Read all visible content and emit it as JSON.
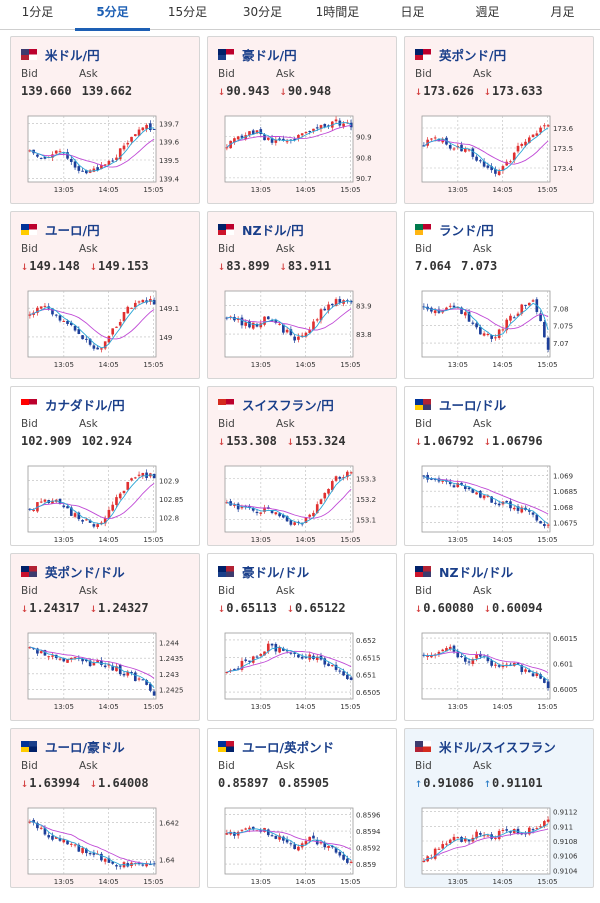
{
  "tabs": [
    {
      "label": "1分足",
      "active": false
    },
    {
      "label": "5分足",
      "active": true
    },
    {
      "label": "15分足",
      "active": false
    },
    {
      "label": "30分足",
      "active": false
    },
    {
      "label": "1時間足",
      "active": false
    },
    {
      "label": "日足",
      "active": false
    },
    {
      "label": "週足",
      "active": false
    },
    {
      "label": "月足",
      "active": false
    }
  ],
  "labels": {
    "bid": "Bid",
    "ask": "Ask"
  },
  "colors": {
    "down_bg": "#fdf1f1",
    "up_bg": "#eef5fb",
    "candle_up": "#e03030",
    "candle_down": "#1d3f9a",
    "ma_short": "#2aa6d6",
    "ma_long": "#c04ad6",
    "arrow_down": "#d23b3b",
    "arrow_up": "#2a7cc7"
  },
  "cards": [
    {
      "pair": "米ドル/円",
      "flag": [
        "us",
        "jp"
      ],
      "bid": "139.660",
      "ask": "139.662",
      "bid_dir": "",
      "ask_dir": "",
      "trend": "down",
      "chart": {
        "x_ticks": [
          "13:05",
          "14:05",
          "15:05"
        ],
        "y_ticks": [
          "139.7",
          "139.6",
          "139.5",
          "139.4"
        ],
        "y_range": [
          139.38,
          139.74
        ],
        "anchors": [
          139.55,
          139.52,
          139.56,
          139.48,
          139.43,
          139.46,
          139.5,
          139.6,
          139.69,
          139.66
        ]
      }
    },
    {
      "pair": "豪ドル/円",
      "flag": [
        "au",
        "jp"
      ],
      "bid": "90.943",
      "ask": "90.948",
      "bid_dir": "down",
      "ask_dir": "down",
      "trend": "down",
      "chart": {
        "x_ticks": [
          "13:05",
          "14:05",
          "15:05"
        ],
        "y_ticks": [
          "90.9",
          "90.8",
          "90.7"
        ],
        "y_range": [
          90.68,
          91.0
        ],
        "anchors": [
          90.86,
          90.9,
          90.93,
          90.88,
          90.87,
          90.9,
          90.92,
          90.96,
          90.97,
          90.95
        ]
      }
    },
    {
      "pair": "英ポンド/円",
      "flag": [
        "gb",
        "jp"
      ],
      "bid": "173.626",
      "ask": "173.633",
      "bid_dir": "down",
      "ask_dir": "down",
      "trend": "down",
      "chart": {
        "x_ticks": [
          "13:05",
          "14:05",
          "15:05"
        ],
        "y_ticks": [
          "173.6",
          "173.5",
          "173.4"
        ],
        "y_range": [
          173.33,
          173.66
        ],
        "anchors": [
          173.52,
          173.55,
          173.5,
          173.49,
          173.44,
          173.38,
          173.42,
          173.52,
          173.58,
          173.62
        ]
      }
    },
    {
      "pair": "ユーロ/円",
      "flag": [
        "eu",
        "jp"
      ],
      "bid": "149.148",
      "ask": "149.153",
      "bid_dir": "down",
      "ask_dir": "down",
      "trend": "down",
      "chart": {
        "x_ticks": [
          "13:05",
          "14:05",
          "15:05"
        ],
        "y_ticks": [
          "149.1",
          "149"
        ],
        "y_range": [
          148.93,
          149.16
        ],
        "anchors": [
          149.08,
          149.11,
          149.07,
          149.04,
          148.99,
          148.95,
          149.02,
          149.09,
          149.13,
          149.12
        ]
      }
    },
    {
      "pair": "NZドル/円",
      "flag": [
        "nz",
        "jp"
      ],
      "bid": "83.899",
      "ask": "83.911",
      "bid_dir": "down",
      "ask_dir": "down",
      "trend": "down",
      "chart": {
        "x_ticks": [
          "13:05",
          "14:05",
          "15:05"
        ],
        "y_ticks": [
          "83.9",
          "83.8"
        ],
        "y_range": [
          83.72,
          83.95
        ],
        "anchors": [
          83.86,
          83.84,
          83.83,
          83.86,
          83.82,
          83.78,
          83.82,
          83.89,
          83.92,
          83.9
        ]
      }
    },
    {
      "pair": "ランド/円",
      "flag": [
        "za",
        "jp"
      ],
      "bid": "7.064",
      "ask": "7.073",
      "bid_dir": "",
      "ask_dir": "",
      "trend": "flat",
      "chart": {
        "x_ticks": [
          "13:05",
          "14:05",
          "15:05"
        ],
        "y_ticks": [
          "7.08",
          "7.075",
          "7.07"
        ],
        "y_range": [
          7.066,
          7.085
        ],
        "anchors": [
          7.08,
          7.079,
          7.081,
          7.078,
          7.073,
          7.071,
          7.076,
          7.08,
          7.082,
          7.068
        ]
      }
    },
    {
      "pair": "カナダドル/円",
      "flag": [
        "ca",
        "jp"
      ],
      "bid": "102.909",
      "ask": "102.924",
      "bid_dir": "",
      "ask_dir": "",
      "trend": "flat",
      "chart": {
        "x_ticks": [
          "13:05",
          "14:05",
          "15:05"
        ],
        "y_ticks": [
          "102.9",
          "102.85",
          "102.8"
        ],
        "y_range": [
          102.76,
          102.94
        ],
        "anchors": [
          102.82,
          102.85,
          102.84,
          102.81,
          102.79,
          102.78,
          102.83,
          102.89,
          102.92,
          102.91
        ]
      }
    },
    {
      "pair": "スイスフラン/円",
      "flag": [
        "ch",
        "jp"
      ],
      "bid": "153.308",
      "ask": "153.324",
      "bid_dir": "down",
      "ask_dir": "down",
      "trend": "down",
      "chart": {
        "x_ticks": [
          "13:05",
          "14:05",
          "15:05"
        ],
        "y_ticks": [
          "153.3",
          "153.2",
          "153.1"
        ],
        "y_range": [
          153.04,
          153.36
        ],
        "anchors": [
          153.17,
          153.16,
          153.14,
          153.16,
          153.11,
          153.07,
          153.11,
          153.21,
          153.31,
          153.32
        ]
      }
    },
    {
      "pair": "ユーロ/ドル",
      "flag": [
        "eu",
        "us"
      ],
      "bid": "1.06792",
      "ask": "1.06796",
      "bid_dir": "down",
      "ask_dir": "down",
      "trend": "flat",
      "chart": {
        "x_ticks": [
          "13:05",
          "14:05",
          "15:05"
        ],
        "y_ticks": [
          "1.069",
          "1.0685",
          "1.068",
          "1.0675"
        ],
        "y_range": [
          1.0672,
          1.0693
        ],
        "anchors": [
          1.069,
          1.0688,
          1.0687,
          1.0686,
          1.0684,
          1.0682,
          1.0681,
          1.0679,
          1.0677,
          1.0674
        ]
      }
    },
    {
      "pair": "英ポンド/ドル",
      "flag": [
        "gb",
        "us"
      ],
      "bid": "1.24317",
      "ask": "1.24327",
      "bid_dir": "down",
      "ask_dir": "down",
      "trend": "down",
      "chart": {
        "x_ticks": [
          "13:05",
          "14:05",
          "15:05"
        ],
        "y_ticks": [
          "1.244",
          "1.2435",
          "1.243",
          "1.2425"
        ],
        "y_range": [
          1.2422,
          1.2443
        ],
        "anchors": [
          1.2438,
          1.2437,
          1.2434,
          1.2435,
          1.2433,
          1.2434,
          1.2432,
          1.243,
          1.2428,
          1.2424
        ]
      }
    },
    {
      "pair": "豪ドル/ドル",
      "flag": [
        "au",
        "us"
      ],
      "bid": "0.65113",
      "ask": "0.65122",
      "bid_dir": "down",
      "ask_dir": "down",
      "trend": "flat",
      "chart": {
        "x_ticks": [
          "13:05",
          "14:05",
          "15:05"
        ],
        "y_ticks": [
          "0.652",
          "0.6515",
          "0.651",
          "0.6505"
        ],
        "y_range": [
          0.6503,
          0.6522
        ],
        "anchors": [
          0.651,
          0.6513,
          0.6515,
          0.6518,
          0.6517,
          0.6516,
          0.6515,
          0.6514,
          0.6511,
          0.6509
        ]
      }
    },
    {
      "pair": "NZドル/ドル",
      "flag": [
        "nz",
        "us"
      ],
      "bid": "0.60080",
      "ask": "0.60094",
      "bid_dir": "down",
      "ask_dir": "down",
      "trend": "flat",
      "chart": {
        "x_ticks": [
          "13:05",
          "14:05",
          "15:05"
        ],
        "y_ticks": [
          "0.6015",
          "0.601",
          "0.6005"
        ],
        "y_range": [
          0.6003,
          0.6016
        ],
        "anchors": [
          0.6011,
          0.6012,
          0.6013,
          0.601,
          0.6012,
          0.6009,
          0.601,
          0.6009,
          0.6008,
          0.6005
        ]
      }
    },
    {
      "pair": "ユーロ/豪ドル",
      "flag": [
        "eu",
        "au"
      ],
      "bid": "1.63994",
      "ask": "1.64008",
      "bid_dir": "down",
      "ask_dir": "down",
      "trend": "down",
      "chart": {
        "x_ticks": [
          "13:05",
          "14:05",
          "15:05"
        ],
        "y_ticks": [
          "1.642",
          "1.64"
        ],
        "y_range": [
          1.6392,
          1.6428
        ],
        "anchors": [
          1.6422,
          1.6415,
          1.6411,
          1.6408,
          1.6404,
          1.6401,
          1.6398,
          1.6397,
          1.6398,
          1.6399
        ]
      }
    },
    {
      "pair": "ユーロ/英ポンド",
      "flag": [
        "eu",
        "gb"
      ],
      "bid": "0.85897",
      "ask": "0.85905",
      "bid_dir": "",
      "ask_dir": "",
      "trend": "flat",
      "chart": {
        "x_ticks": [
          "13:05",
          "14:05",
          "15:05"
        ],
        "y_ticks": [
          "0.8596",
          "0.8594",
          "0.8592",
          "0.859"
        ],
        "y_range": [
          0.85888,
          0.85968
        ],
        "anchors": [
          0.85935,
          0.8594,
          0.85945,
          0.85938,
          0.8593,
          0.8592,
          0.8593,
          0.85925,
          0.85915,
          0.859
        ]
      }
    },
    {
      "pair": "米ドル/スイスフラン",
      "flag": [
        "us",
        "ch"
      ],
      "bid": "0.91086",
      "ask": "0.91101",
      "bid_dir": "up",
      "ask_dir": "up",
      "trend": "up",
      "chart": {
        "x_ticks": [
          "13:05",
          "14:05",
          "15:05"
        ],
        "y_ticks": [
          "0.9112",
          "0.911",
          "0.9108",
          "0.9106",
          "0.9104"
        ],
        "y_range": [
          0.91035,
          0.91125
        ],
        "anchors": [
          0.9105,
          0.9107,
          0.91085,
          0.9108,
          0.9109,
          0.91085,
          0.91095,
          0.9109,
          0.911,
          0.91105
        ]
      }
    }
  ]
}
